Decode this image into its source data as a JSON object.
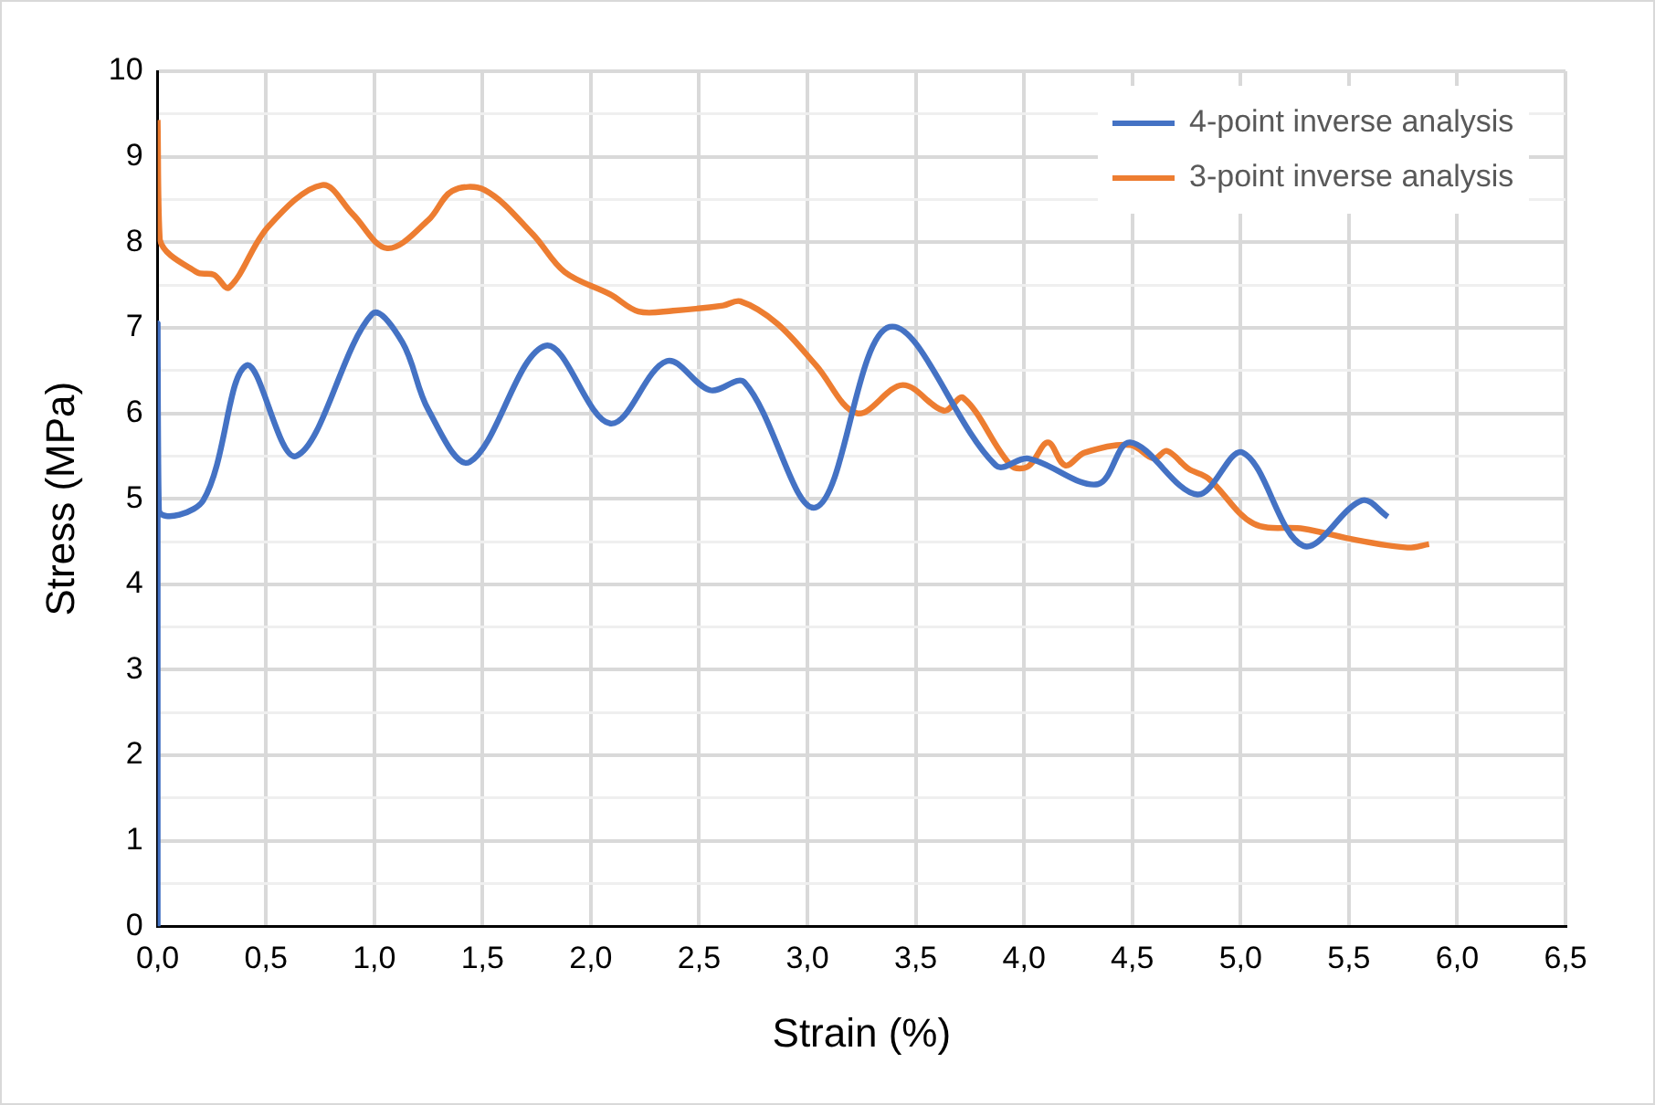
{
  "chart_data": {
    "type": "line",
    "xlabel": "Strain (%)",
    "ylabel": "Stress (MPa)",
    "xlim": [
      0,
      6.5
    ],
    "xticks": [
      {
        "value": 0,
        "label": "0,0"
      },
      {
        "value": 0.5,
        "label": "0,5"
      },
      {
        "value": 1,
        "label": "1,0"
      },
      {
        "value": 1.5,
        "label": "1,5"
      },
      {
        "value": 2,
        "label": "2,0"
      },
      {
        "value": 2.5,
        "label": "2,5"
      },
      {
        "value": 3,
        "label": "3,0"
      },
      {
        "value": 3.5,
        "label": "3,5"
      },
      {
        "value": 4,
        "label": "4,0"
      },
      {
        "value": 4.5,
        "label": "4,5"
      },
      {
        "value": 5,
        "label": "5,0"
      },
      {
        "value": 5.5,
        "label": "5,5"
      },
      {
        "value": 6,
        "label": "6,0"
      },
      {
        "value": 6.5,
        "label": "6,5"
      }
    ],
    "ylim": [
      0,
      10
    ],
    "yticks": [
      0,
      {
        "value": 0.5,
        "label": null
      },
      1,
      {
        "value": 1.5,
        "label": null
      },
      2,
      {
        "value": 2.5,
        "label": null
      },
      3,
      {
        "value": 3.5,
        "label": null
      },
      4,
      {
        "value": 4.5,
        "label": null
      },
      5,
      {
        "value": 5.5,
        "label": null
      },
      6,
      {
        "value": 6.5,
        "label": null
      },
      7,
      {
        "value": 7.5,
        "label": null
      },
      8,
      {
        "value": 8.5,
        "label": null
      },
      9,
      {
        "value": 9.5,
        "label": null
      },
      10
    ],
    "grid": true,
    "legend": "top right",
    "marker": "none",
    "line_style": "solid",
    "series": [
      {
        "name": "4-point inverse analysis",
        "color": "#4472c4",
        "x": [
          0,
          0,
          0.006,
          0.21,
          0.41,
          0.64,
          0.99,
          1.13,
          1.25,
          1.44,
          1.79,
          2.09,
          2.35,
          2.55,
          2.71,
          3.04,
          3.38,
          3.87,
          4.02,
          4.34,
          4.49,
          4.8,
          5.01,
          5.29,
          5.56,
          5.68
        ],
        "values": [
          0,
          7,
          4.86,
          4.98,
          6.56,
          5.5,
          7.16,
          6.83,
          6.04,
          5.43,
          6.79,
          5.88,
          6.61,
          6.27,
          6.36,
          4.9,
          7.01,
          5.39,
          5.47,
          5.17,
          5.66,
          5.05,
          5.54,
          4.45,
          4.98,
          4.79
        ]
      },
      {
        "name": "3-point inverse analysis",
        "color": "#ed7d31",
        "x": [
          0,
          0.01,
          0.18,
          0.26,
          0.33,
          0.51,
          0.76,
          0.9,
          1.06,
          1.25,
          1.36,
          1.51,
          1.73,
          1.88,
          2.09,
          2.22,
          2.38,
          2.61,
          2.69,
          2.86,
          3.04,
          3.23,
          3.44,
          3.63,
          3.72,
          3.94,
          4.02,
          4.11,
          4.19,
          4.28,
          4.49,
          4.6,
          4.66,
          4.76,
          4.85,
          5.06,
          5.29,
          5.53,
          5.77,
          5.87
        ],
        "values": [
          9.43,
          8.03,
          7.65,
          7.62,
          7.47,
          8.18,
          8.67,
          8.33,
          7.93,
          8.26,
          8.6,
          8.61,
          8.1,
          7.65,
          7.39,
          7.19,
          7.2,
          7.26,
          7.31,
          7.05,
          6.56,
          6.0,
          6.33,
          6.03,
          6.18,
          5.39,
          5.38,
          5.66,
          5.39,
          5.54,
          5.63,
          5.47,
          5.56,
          5.35,
          5.24,
          4.71,
          4.65,
          4.52,
          4.43,
          4.47
        ]
      }
    ]
  }
}
